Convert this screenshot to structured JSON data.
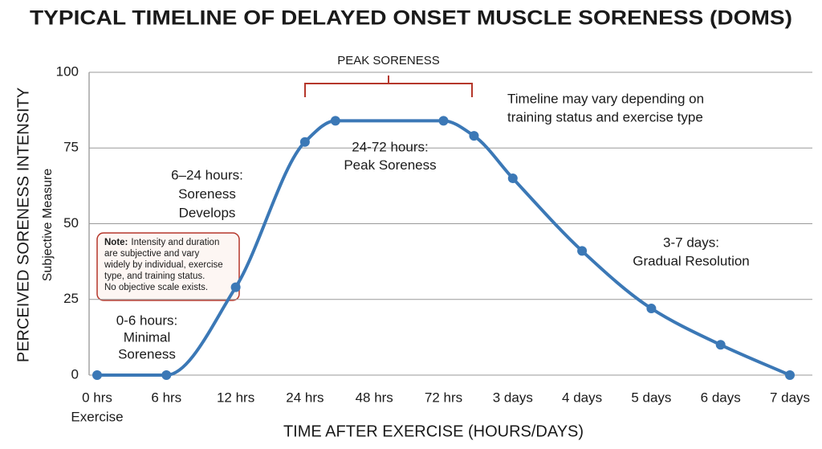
{
  "chart_data": {
    "type": "line",
    "title": "TYPICAL TIMELINE OF DELAYED ONSET MUSCLE SORENESS (DOMS)",
    "y_label": "PERCEIVED SORENESS INTENSITY",
    "y_sublabel": "Subjective Measure",
    "x_label": "TIME AFTER EXERCISE (HOURS/DAYS)",
    "x_sublabel": "Exercise",
    "xlim": [
      0,
      10
    ],
    "xticks": [
      {
        "value": 0,
        "label": "0 hrs"
      },
      {
        "value": 1,
        "label": "6 hrs"
      },
      {
        "value": 2,
        "label": "12 hrs"
      },
      {
        "value": 3,
        "label": "24 hrs"
      },
      {
        "value": 4,
        "label": "48 hrs"
      },
      {
        "value": 5,
        "label": "72 hrs"
      },
      {
        "value": 6,
        "label": "3 days"
      },
      {
        "value": 7,
        "label": "4 days"
      },
      {
        "value": 8,
        "label": "5 days"
      },
      {
        "value": 9,
        "label": "6 days"
      },
      {
        "value": 10,
        "label": "7 days"
      }
    ],
    "ylim": [
      0,
      100
    ],
    "yticks": [
      0,
      25,
      50,
      75,
      100
    ],
    "grid": true,
    "series": [
      {
        "color": "#3b78b6",
        "x": [
          0,
          1,
          2,
          3,
          3.44,
          5,
          5.44,
          6,
          7,
          8,
          9,
          10
        ],
        "values": [
          0,
          0,
          29,
          77,
          84,
          84,
          79,
          65,
          41,
          22,
          10,
          0
        ]
      }
    ],
    "bracket_label": "PEAK SORENESS",
    "annotations": [
      {
        "lines": [
          "0-6 hours:",
          "Minimal",
          "Soreness"
        ]
      },
      {
        "lines": [
          "6–24 hours:",
          "Soreness",
          "Develops"
        ]
      },
      {
        "lines": [
          "24-72 hours:",
          "Peak Soreness"
        ]
      },
      {
        "lines": [
          "Timeline may vary depending on",
          "training status and exercise type"
        ]
      },
      {
        "lines": [
          "3-7 days:",
          "Gradual Resolution"
        ]
      }
    ],
    "note": {
      "label": "Note:",
      "lines": [
        "Intensity and duration",
        "are subjective and vary",
        "widely by individual, exercise",
        "type, and training status.",
        "No objective scale exists."
      ]
    }
  }
}
